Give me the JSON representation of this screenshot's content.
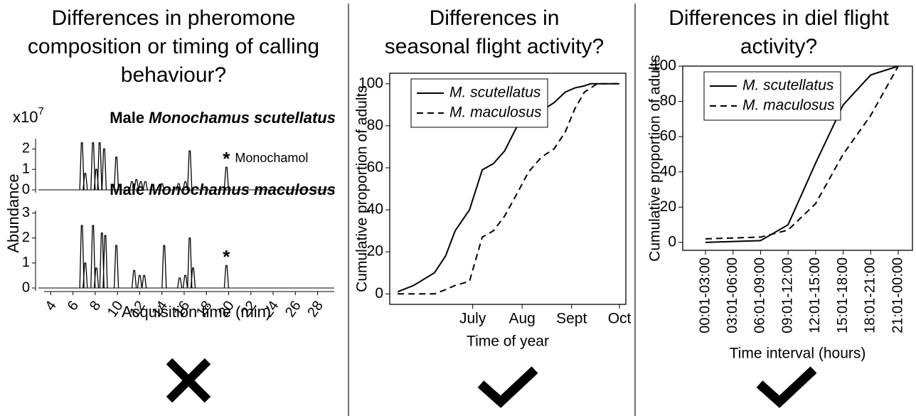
{
  "headings": [
    "Differences in pheromone composition or timing of calling behaviour?",
    "Differences in seasonal flight activity?",
    "Differences in diel flight activity?"
  ],
  "chart_data": [
    {
      "type": "peaks",
      "title_prefix": "Male",
      "title_species": "Monochamus scutellatus",
      "y_scale": {
        "base": "x10",
        "exponent": "7"
      },
      "ylabel": "Abundance",
      "x": [
        6.8,
        7.1,
        7.8,
        8.1,
        8.4,
        8.8,
        9.9,
        11.3,
        11.7,
        12.1,
        12.5,
        14.0,
        15.5,
        16.1,
        16.5,
        19.8
      ],
      "values": [
        2.3,
        0.8,
        2.3,
        1.0,
        2.3,
        2.0,
        1.6,
        0.4,
        0.5,
        0.4,
        0.4,
        0.3,
        0.3,
        0.4,
        1.9,
        1.1
      ],
      "color": "#000000",
      "xlim": [
        3.4,
        29.5
      ],
      "ylim": [
        0,
        2.5
      ],
      "yticks": [
        0,
        1,
        2
      ],
      "annotation": {
        "marker": "*",
        "text": "Monochamol"
      }
    },
    {
      "type": "peaks",
      "title_prefix": "Male",
      "title_species": "Monochamus maculosus",
      "x": [
        6.8,
        7.1,
        7.8,
        8.1,
        8.6,
        8.9,
        9.9,
        11.5,
        12.0,
        12.4,
        14.2,
        15.6,
        16.1,
        16.5,
        16.8,
        19.8
      ],
      "values": [
        2.5,
        1.0,
        2.5,
        0.8,
        2.2,
        2.1,
        1.7,
        0.7,
        0.5,
        0.5,
        1.7,
        0.4,
        0.5,
        2.0,
        0.8,
        0.9
      ],
      "color": "#000000",
      "xlim": [
        3.4,
        29.5
      ],
      "ylim": [
        0,
        3.1
      ],
      "yticks": [
        0,
        1,
        2,
        3
      ],
      "xticks": [
        4,
        6,
        8,
        10,
        12,
        14,
        16,
        18,
        20,
        22,
        24,
        26,
        28
      ],
      "xlabel": "Acquisition time (min)",
      "annotation": {
        "marker": "*"
      }
    },
    {
      "type": "line",
      "xlabel": "Time of year",
      "ylabel": "Cumulative proportion of adults",
      "x": [
        135,
        145,
        158,
        165,
        171,
        180,
        188,
        195,
        202,
        210,
        217,
        225,
        233,
        240,
        246,
        252,
        256,
        260,
        274
      ],
      "series": [
        {
          "name": "M. scutellatus",
          "color": "#000000",
          "dash": "solid",
          "values": [
            1,
            4,
            10,
            18,
            30,
            40,
            59,
            62,
            68,
            80,
            85,
            87,
            91,
            96,
            98,
            99,
            100,
            100,
            100
          ]
        },
        {
          "name": "M. maculosus",
          "color": "#000000",
          "dash": "dashed",
          "values": [
            0,
            0,
            0,
            2,
            4,
            6,
            27,
            30,
            37,
            48,
            58,
            65,
            69,
            77,
            88,
            96,
            98,
            100,
            100
          ]
        }
      ],
      "xlim": [
        130,
        278
      ],
      "xticks": [
        {
          "value": 182,
          "label": "July"
        },
        {
          "value": 213,
          "label": "Aug"
        },
        {
          "value": 244,
          "label": "Sept"
        },
        {
          "value": 274,
          "label": "Oct"
        }
      ],
      "ylim": [
        -5,
        105
      ],
      "yticks": [
        0,
        20,
        40,
        60,
        80,
        100
      ],
      "legend": "top-left"
    },
    {
      "type": "line",
      "xlabel": "Time interval (hours)",
      "ylabel": "Cumulative proportion of adults",
      "categories": [
        "00:01-03:00",
        "03:01-06:00",
        "06:01-09:00",
        "09:01-12:00",
        "12:01-15:00",
        "15:01-18:00",
        "18:01-21:00",
        "21:01-00:00"
      ],
      "series": [
        {
          "name": "M. scutellatus",
          "color": "#000000",
          "dash": "solid",
          "values": [
            0,
            0.5,
            1,
            10,
            45,
            78,
            95,
            100
          ]
        },
        {
          "name": "M. maculosus",
          "color": "#000000",
          "dash": "dashed",
          "values": [
            2,
            2.5,
            3,
            7,
            22,
            50,
            72,
            100
          ]
        }
      ],
      "ylim": [
        -4.5,
        100
      ],
      "yticks": [
        0,
        20,
        40,
        60,
        80,
        100
      ],
      "legend": "top-left"
    }
  ]
}
